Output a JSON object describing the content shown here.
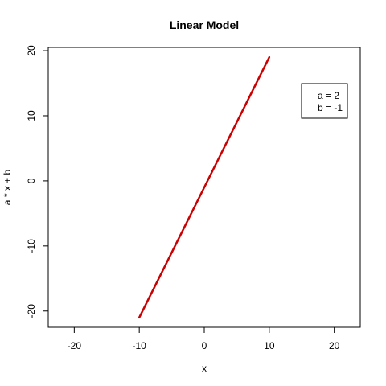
{
  "chart_data": {
    "type": "line",
    "title": "Linear Model",
    "xlabel": "x",
    "ylabel": "a * x + b",
    "xlim": [
      -24,
      24
    ],
    "ylim": [
      -22.5,
      20.5
    ],
    "x_ticks": [
      -20,
      -10,
      0,
      10,
      20
    ],
    "y_ticks": [
      -20,
      -10,
      0,
      10,
      20
    ],
    "x_tick_labels": [
      "-20",
      "-10",
      "0",
      "10",
      "20"
    ],
    "y_tick_labels": [
      "-20",
      "-10",
      "0",
      "10",
      "20"
    ],
    "grid": false,
    "legend_position": "top-right",
    "legend_entries": [
      "a = 2",
      "b = -1"
    ],
    "series": [
      {
        "color": "#cc0000",
        "x": [
          -10,
          10
        ],
        "values": [
          -21,
          19
        ]
      }
    ]
  }
}
